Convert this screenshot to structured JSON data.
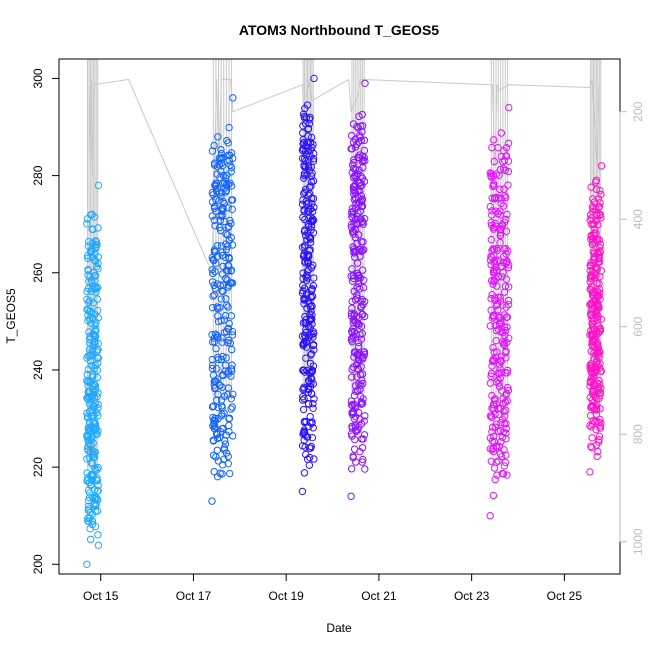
{
  "chart_data": {
    "type": "scatter",
    "title": "ATOM3 Northbound T_GEOS5",
    "xlabel": "Date",
    "ylabel": "T_GEOS5",
    "x_tick_labels": [
      "Oct 15",
      "Oct 17",
      "Oct 19",
      "Oct 21",
      "Oct 23",
      "Oct 25"
    ],
    "x_ticks_day": [
      15,
      17,
      19,
      21,
      23,
      25
    ],
    "xlim_day": [
      14.1,
      26.2
    ],
    "ylim": [
      198,
      304
    ],
    "y_ticks": [
      200,
      220,
      240,
      260,
      280,
      300
    ],
    "right_axis": {
      "ticks": [
        200,
        400,
        600,
        800,
        1000
      ],
      "tick_labels": [
        "200",
        "400",
        "600",
        "800",
        "1000"
      ],
      "reversed": true,
      "color": "#bdbdbd"
    },
    "flights": [
      {
        "start": 14.7,
        "end": 14.95,
        "tmin": 200,
        "tmax": 278,
        "color": "#1ea9ff"
      },
      {
        "start": 17.4,
        "end": 17.85,
        "tmin": 213,
        "tmax": 296,
        "color": "#1262ff"
      },
      {
        "start": 19.35,
        "end": 19.6,
        "tmin": 215,
        "tmax": 300,
        "color": "#2a12ff"
      },
      {
        "start": 20.4,
        "end": 20.7,
        "tmin": 214,
        "tmax": 299,
        "color": "#8a12ff"
      },
      {
        "start": 23.4,
        "end": 23.8,
        "tmin": 210,
        "tmax": 294,
        "color": "#e012ff"
      },
      {
        "start": 25.55,
        "end": 25.8,
        "tmin": 219,
        "tmax": 282,
        "color": "#ff12c8"
      }
    ],
    "pressure_trace": {
      "points": [
        [
          14.75,
          150
        ],
        [
          14.78,
          300
        ],
        [
          14.8,
          140
        ],
        [
          14.83,
          320
        ],
        [
          14.85,
          150
        ],
        [
          15.6,
          140
        ],
        [
          17.4,
          500
        ],
        [
          17.5,
          140
        ],
        [
          17.55,
          300
        ],
        [
          17.6,
          140
        ],
        [
          17.8,
          140
        ],
        [
          17.85,
          200
        ],
        [
          19.35,
          150
        ],
        [
          19.38,
          200
        ],
        [
          19.5,
          140
        ],
        [
          19.55,
          180
        ],
        [
          20.35,
          140
        ],
        [
          20.4,
          200
        ],
        [
          20.55,
          170
        ],
        [
          20.6,
          140
        ],
        [
          23.45,
          150
        ],
        [
          23.5,
          300
        ],
        [
          23.55,
          150
        ],
        [
          23.6,
          160
        ],
        [
          23.8,
          150
        ],
        [
          25.55,
          155
        ],
        [
          25.6,
          140
        ],
        [
          25.7,
          300
        ],
        [
          25.75,
          150
        ]
      ],
      "grid": false
    },
    "legend": "none"
  }
}
